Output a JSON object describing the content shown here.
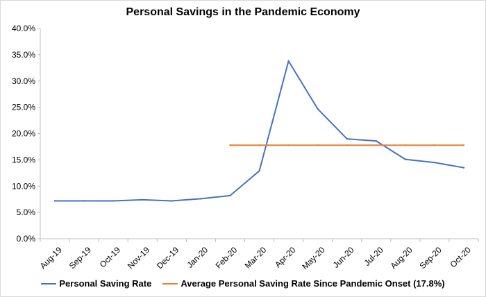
{
  "chart_data": {
    "type": "line",
    "title": "Personal Savings in the Pandemic Economy",
    "xlabel": "",
    "ylabel": "",
    "categories": [
      "Aug-19",
      "Sep-19",
      "Oct-19",
      "Nov-19",
      "Dec-19",
      "Jan-20",
      "Feb-20",
      "Mar-20",
      "Apr-20",
      "May-20",
      "Jun-20",
      "Jul-20",
      "Aug-20",
      "Sep-20",
      "Oct-20"
    ],
    "ylim": [
      0,
      40
    ],
    "y_ticks": [
      "0.0%",
      "5.0%",
      "10.0%",
      "15.0%",
      "20.0%",
      "25.0%",
      "30.0%",
      "35.0%",
      "40.0%"
    ],
    "y_tick_values": [
      0,
      5,
      10,
      15,
      20,
      25,
      30,
      35,
      40
    ],
    "grid": false,
    "legend_position": "bottom",
    "series": [
      {
        "name": "Personal Saving Rate",
        "color": "#4472C4",
        "values": [
          7.2,
          7.2,
          7.2,
          7.4,
          7.2,
          7.6,
          8.2,
          12.9,
          33.8,
          24.7,
          19.0,
          18.6,
          15.1,
          14.5,
          13.5
        ]
      },
      {
        "name": "Average Personal Saving Rate Since Pandemic Onset (17.8%)",
        "color": "#ED7D31",
        "values": [
          null,
          null,
          null,
          null,
          null,
          null,
          17.8,
          17.8,
          17.8,
          17.8,
          17.8,
          17.8,
          17.8,
          17.8,
          17.8
        ]
      }
    ]
  }
}
